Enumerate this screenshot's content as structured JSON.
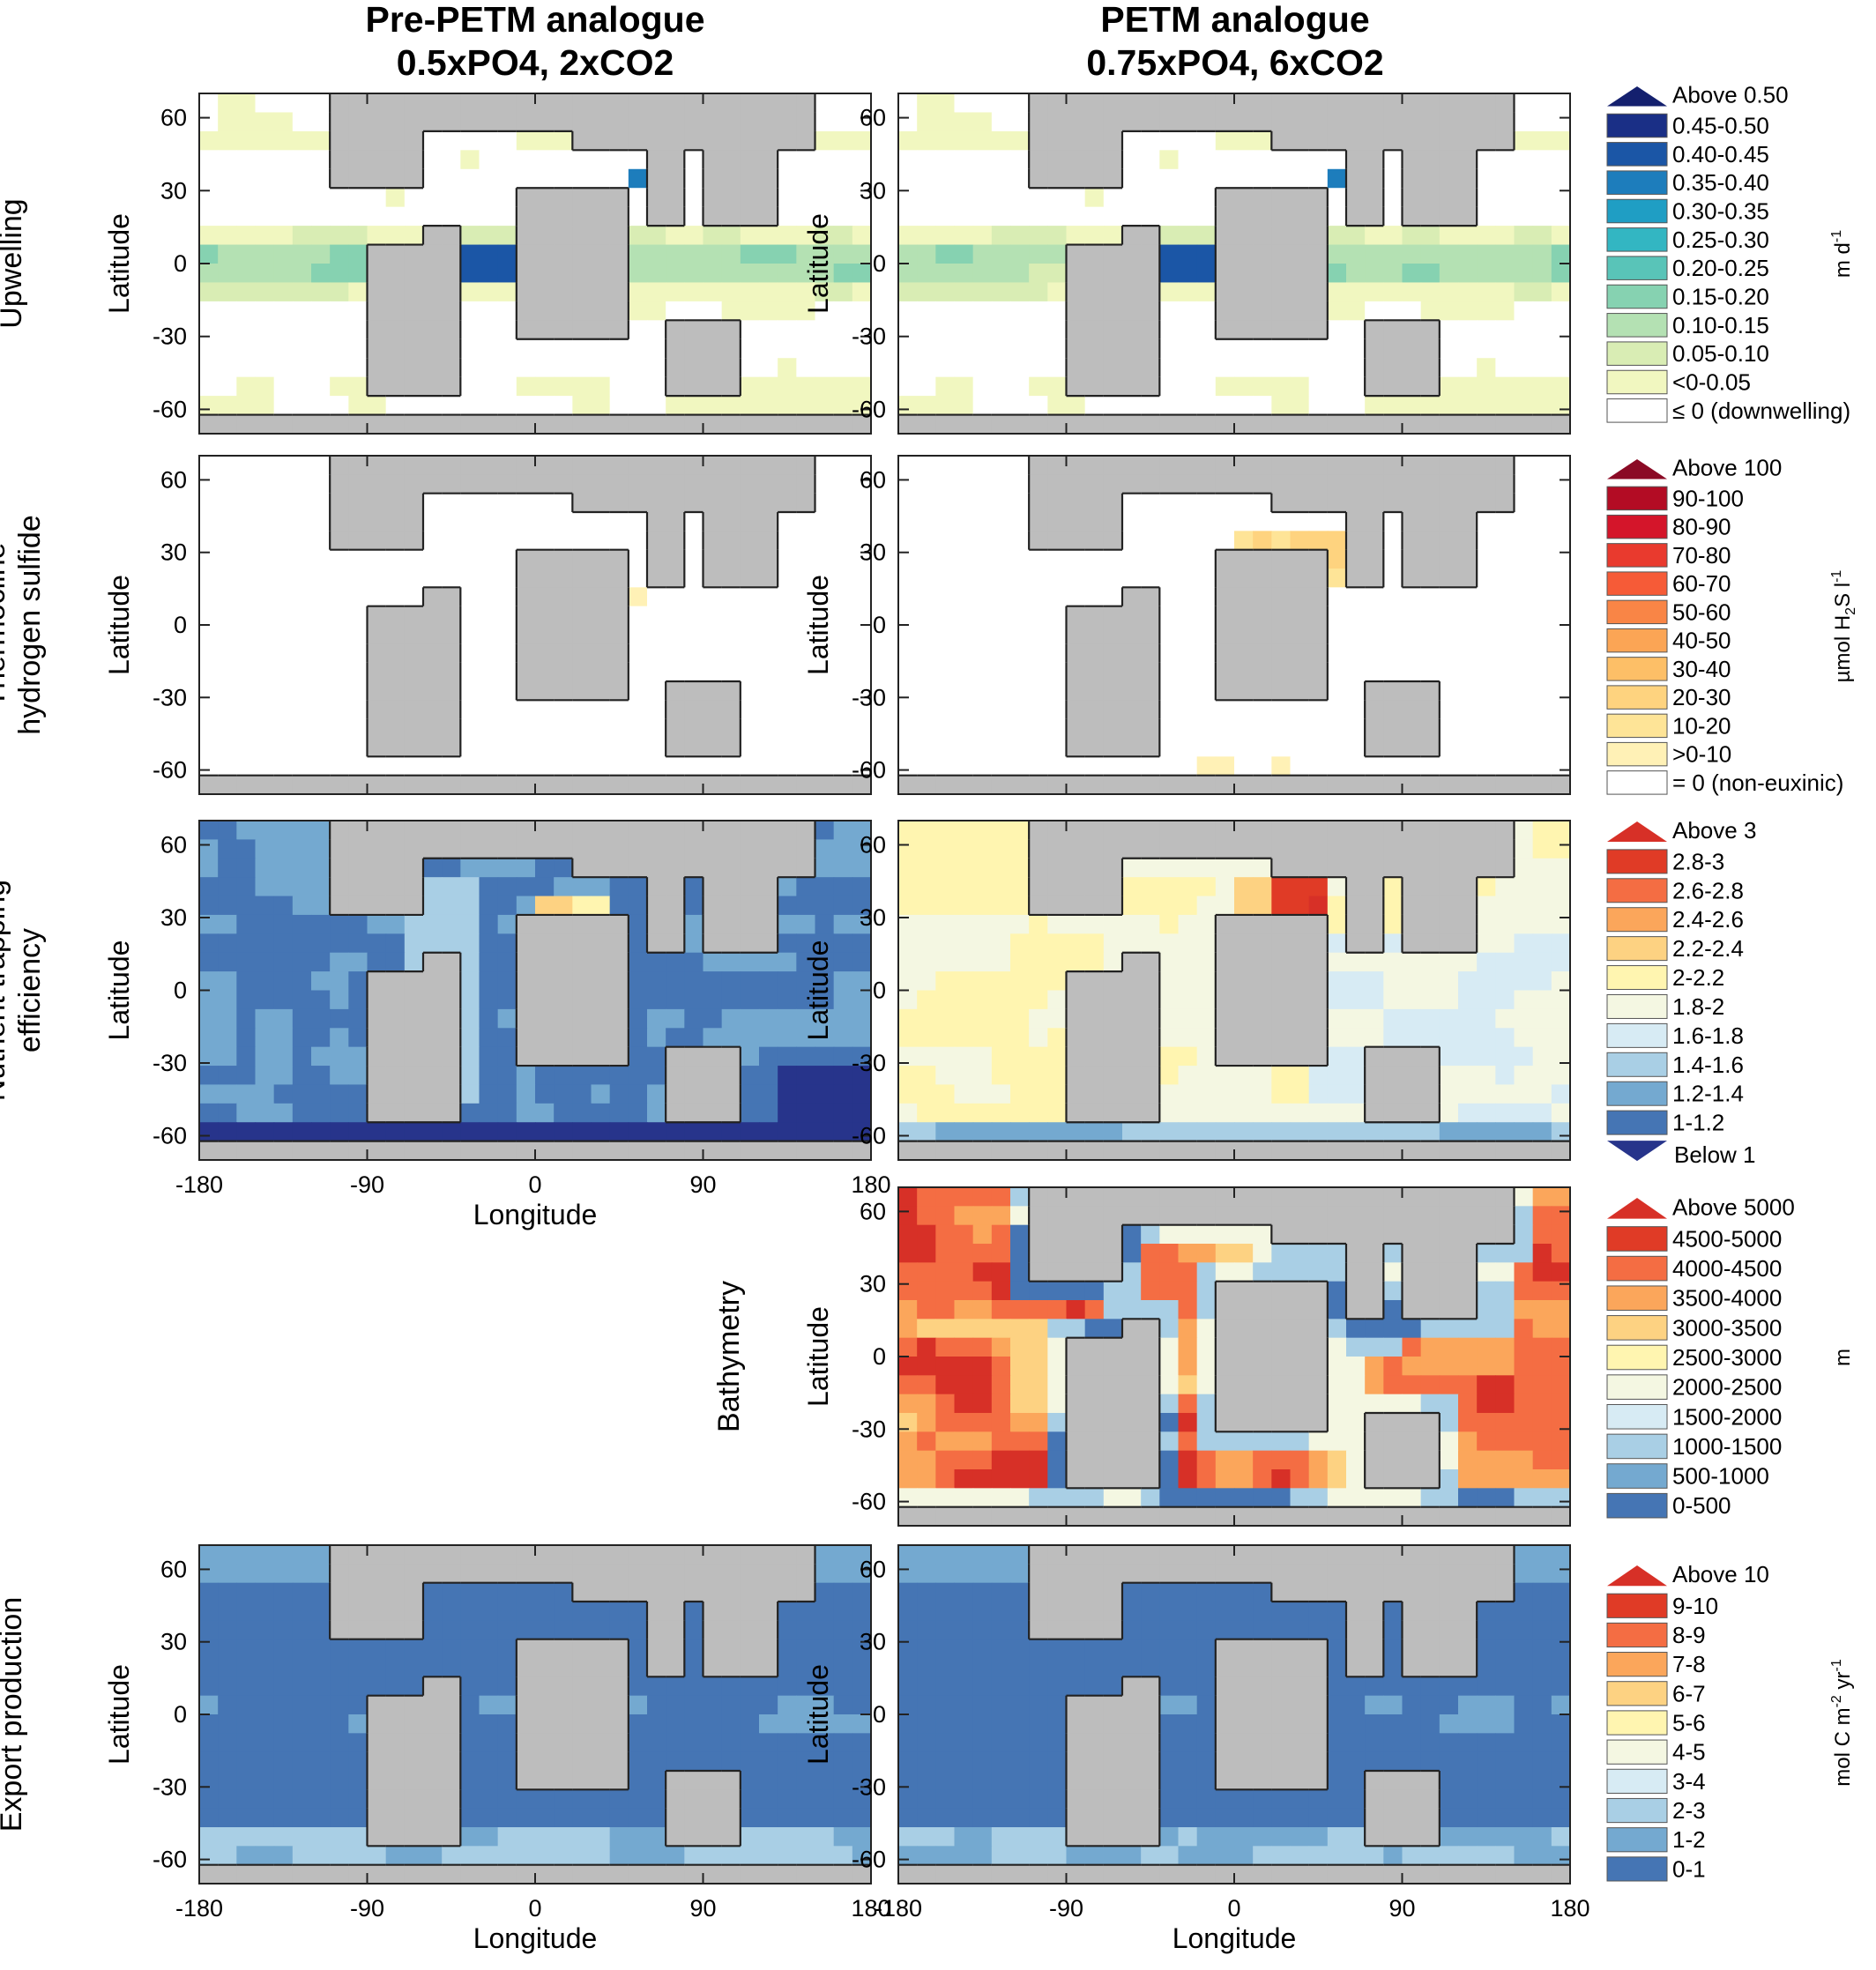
{
  "columns": [
    {
      "line1": "Pre-PETM analogue",
      "line2": "0.5xPO4, 2xCO2"
    },
    {
      "line1": "PETM analogue",
      "line2": "0.75xPO4, 6xCO2"
    }
  ],
  "axes": {
    "latitude_label": "Latitude",
    "longitude_label": "Longitude",
    "lat_ticks": [
      "60",
      "30",
      "0",
      "-30",
      "-60"
    ],
    "lat_values": [
      60,
      30,
      0,
      -30,
      -60
    ],
    "lon_ticks": [
      "-180",
      "-90",
      "0",
      "90",
      "180"
    ],
    "lon_values": [
      -180,
      -90,
      0,
      90,
      180
    ],
    "xlim": [
      -180,
      180
    ],
    "ylim": [
      -70,
      70
    ]
  },
  "colors": {
    "land": "#bdbdbd",
    "outline": "#222222"
  },
  "chart_data": [
    {
      "type": "heatmap",
      "row": "Upwelling",
      "row_title_lines": [
        "Upwelling"
      ],
      "panels": [
        "Pre-PETM analogue",
        "PETM analogue"
      ],
      "unit": "m d-1",
      "unit_main": "m d",
      "unit_sup": "-1",
      "arrow_label": "Above 0.50",
      "arrow_color": "#14206e",
      "legend": [
        {
          "label": "0.45-0.50",
          "color": "#1a2f86"
        },
        {
          "label": "0.40-0.45",
          "color": "#1b56a6"
        },
        {
          "label": "0.35-0.40",
          "color": "#1d7dbc"
        },
        {
          "label": "0.30-0.35",
          "color": "#1f9ec4"
        },
        {
          "label": "0.25-0.30",
          "color": "#33b6c2"
        },
        {
          "label": "0.20-0.25",
          "color": "#59c4b8"
        },
        {
          "label": "0.15-0.20",
          "color": "#86d2b1"
        },
        {
          "label": "0.10-0.15",
          "color": "#b4e1b3"
        },
        {
          "label": "0.05-0.10",
          "color": "#d9edb4"
        },
        {
          "label": "<0-0.05",
          "color": "#f1f7c0"
        },
        {
          "label": "≤ 0 (downwelling)",
          "color": "#ffffff"
        }
      ]
    },
    {
      "type": "heatmap",
      "row": "Thermocline hydrogen sulfide",
      "row_title_lines": [
        "Thermocline",
        "hydrogen sulfide"
      ],
      "panels": [
        "Pre-PETM analogue",
        "PETM analogue"
      ],
      "unit": "µmol H2S l-1",
      "unit_main": "µmol H",
      "unit_sub": "2",
      "unit_tail": "S l",
      "unit_sup": "-1",
      "arrow_label": "Above 100",
      "arrow_color": "#8b0a25",
      "legend": [
        {
          "label": "90-100",
          "color": "#b30c24"
        },
        {
          "label": "80-90",
          "color": "#d4152a"
        },
        {
          "label": "70-80",
          "color": "#e93a2e"
        },
        {
          "label": "60-70",
          "color": "#f65b37"
        },
        {
          "label": "50-60",
          "color": "#f98546"
        },
        {
          "label": "40-50",
          "color": "#fba555"
        },
        {
          "label": "30-40",
          "color": "#fdbf67"
        },
        {
          "label": "20-30",
          "color": "#fed37f"
        },
        {
          "label": "10-20",
          "color": "#fee497"
        },
        {
          "label": ">0-10",
          "color": "#fff1b6"
        },
        {
          "label": "= 0 (non-euxinic)",
          "color": "#ffffff"
        }
      ]
    },
    {
      "type": "heatmap",
      "row": "Nutrient trapping efficiency",
      "row_title_lines": [
        "Nutrient trapping",
        "efficiency"
      ],
      "panels": [
        "Pre-PETM analogue",
        "PETM analogue"
      ],
      "unit": "",
      "arrow_label": "Above 3",
      "arrow_color": "#d73027",
      "below_label": "Below 1",
      "below_color": "#27348b",
      "legend": [
        {
          "label": "2.8-3",
          "color": "#e03b26"
        },
        {
          "label": "2.6-2.8",
          "color": "#f46d43"
        },
        {
          "label": "2.4-2.6",
          "color": "#fba65b"
        },
        {
          "label": "2.2-2.4",
          "color": "#fdd282"
        },
        {
          "label": "2-2.2",
          "color": "#fff5b0"
        },
        {
          "label": "1.8-2",
          "color": "#f4f7e2"
        },
        {
          "label": "1.6-1.8",
          "color": "#d7ebf4"
        },
        {
          "label": "1.4-1.6",
          "color": "#a9cfe5"
        },
        {
          "label": "1.2-1.4",
          "color": "#74a9d0"
        },
        {
          "label": "1-1.2",
          "color": "#4575b4"
        }
      ]
    },
    {
      "type": "heatmap",
      "row": "Bathymetry",
      "row_title_lines": [
        "Bathymetry"
      ],
      "panels": [
        "PETM analogue"
      ],
      "unit": "m",
      "arrow_label": "Above 5000",
      "arrow_color": "#d73027",
      "legend": [
        {
          "label": "4500-5000",
          "color": "#e03b26"
        },
        {
          "label": "4000-4500",
          "color": "#f46d43"
        },
        {
          "label": "3500-4000",
          "color": "#fba65b"
        },
        {
          "label": "3000-3500",
          "color": "#fdd282"
        },
        {
          "label": "2500-3000",
          "color": "#fff5b0"
        },
        {
          "label": "2000-2500",
          "color": "#f4f7e2"
        },
        {
          "label": "1500-2000",
          "color": "#d7ebf4"
        },
        {
          "label": "1000-1500",
          "color": "#a9cfe5"
        },
        {
          "label": "500-1000",
          "color": "#74a9d0"
        },
        {
          "label": "0-500",
          "color": "#4575b4"
        }
      ]
    },
    {
      "type": "heatmap",
      "row": "Export production",
      "row_title_lines": [
        "Export production"
      ],
      "panels": [
        "Pre-PETM analogue",
        "PETM analogue"
      ],
      "unit": "mol C m-2 yr-1",
      "unit_main": "mol C m",
      "unit_sup": "-2",
      "unit_tail": " yr",
      "unit_sup2": "-1",
      "arrow_label": "Above 10",
      "arrow_color": "#d73027",
      "legend": [
        {
          "label": "9-10",
          "color": "#e03b26"
        },
        {
          "label": "8-9",
          "color": "#f46d43"
        },
        {
          "label": "7-8",
          "color": "#fba65b"
        },
        {
          "label": "6-7",
          "color": "#fdd282"
        },
        {
          "label": "5-6",
          "color": "#fff5b0"
        },
        {
          "label": "4-5",
          "color": "#f4f7e2"
        },
        {
          "label": "3-4",
          "color": "#d7ebf4"
        },
        {
          "label": "2-3",
          "color": "#a9cfe5"
        },
        {
          "label": "1-2",
          "color": "#74a9d0"
        },
        {
          "label": "0-1",
          "color": "#4575b4"
        }
      ]
    }
  ]
}
